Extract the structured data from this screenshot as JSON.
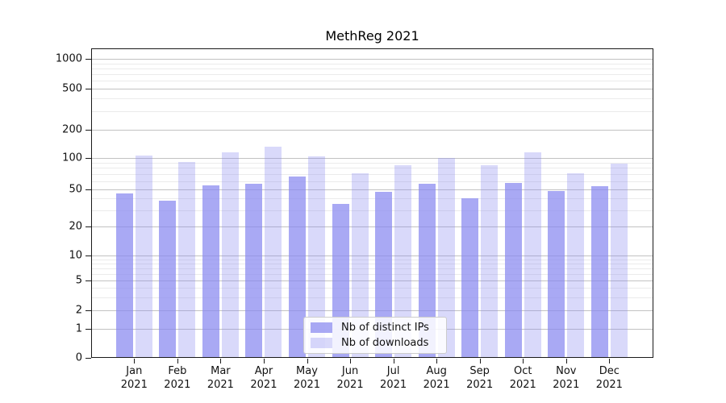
{
  "title": "MethReg 2021",
  "colors": {
    "bar_base": "#8888f0",
    "major_grid": "#c2c2c2",
    "minor_grid": "#ebebeb",
    "axis": "#1a1a1a",
    "legend_border": "#cccccc"
  },
  "chart_data": {
    "type": "bar",
    "title": "MethReg 2021",
    "categories": [
      "Jan",
      "Feb",
      "Mar",
      "Apr",
      "May",
      "Jun",
      "Jul",
      "Aug",
      "Sep",
      "Oct",
      "Nov",
      "Dec"
    ],
    "category_year": "2021",
    "series": [
      {
        "name": "Nb of distinct IPs",
        "color": "#8888f0",
        "alpha": 0.72,
        "values": [
          45,
          38,
          55,
          57,
          66,
          35,
          47,
          57,
          40,
          58,
          48,
          54
        ]
      },
      {
        "name": "Nb of downloads",
        "color": "#8888f0",
        "alpha": 0.32,
        "values": [
          105,
          91,
          113,
          131,
          103,
          71,
          84,
          100,
          85,
          113,
          71,
          88
        ]
      }
    ],
    "y_axis": {
      "scale": "symlog",
      "major_ticks": [
        0,
        1,
        2,
        5,
        10,
        20,
        50,
        100,
        200,
        500,
        1000
      ],
      "minor_ticks": [
        3,
        4,
        6,
        7,
        8,
        9,
        30,
        40,
        60,
        70,
        80,
        90,
        300,
        400,
        600,
        700,
        800,
        900
      ],
      "range": [
        0,
        1400
      ]
    },
    "grid": "on",
    "legend_position": "lower-center"
  }
}
